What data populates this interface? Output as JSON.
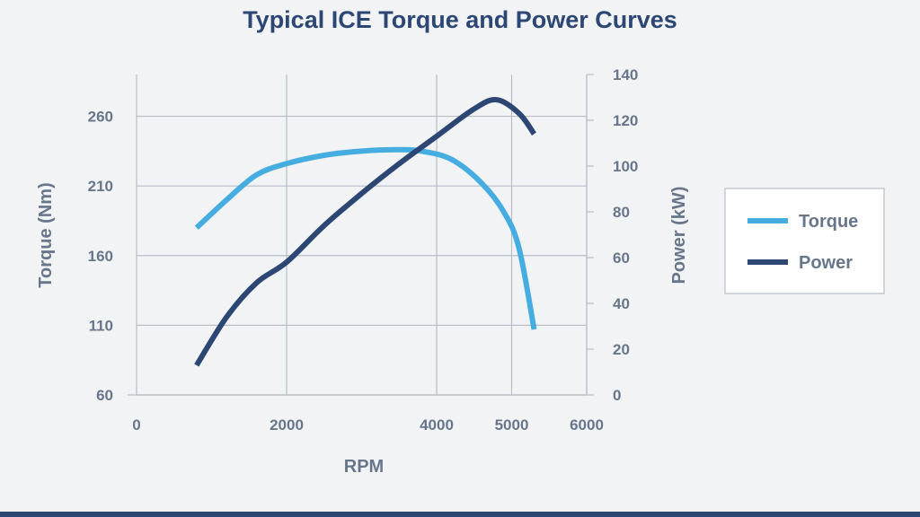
{
  "chart_data": {
    "type": "line",
    "title": "Typical ICE Torque and Power Curves",
    "xlabel": "RPM",
    "ylabel_left": "Torque (Nm)",
    "ylabel_right": "Power (kW)",
    "xlim": [
      0,
      6000
    ],
    "ylim_left": [
      60,
      290
    ],
    "ylim_right": [
      0,
      140
    ],
    "xticks": [
      0,
      2000,
      4000,
      5000,
      6000
    ],
    "yticks_left": [
      60,
      110,
      160,
      210,
      260
    ],
    "yticks_right": [
      0,
      20,
      40,
      60,
      80,
      100,
      120,
      140
    ],
    "grid": true,
    "legend_position": "right",
    "series": [
      {
        "name": "Torque",
        "axis": "left",
        "color": "#45ade0",
        "x": [
          800,
          1200,
          1600,
          2000,
          2500,
          3000,
          3500,
          3800,
          4200,
          4600,
          4900,
          5100,
          5300
        ],
        "y": [
          180,
          200,
          218,
          226,
          232,
          235,
          236,
          235,
          229,
          212,
          191,
          165,
          107
        ]
      },
      {
        "name": "Power",
        "axis": "right",
        "color": "#2d4775",
        "x": [
          800,
          1200,
          1600,
          2000,
          2500,
          3000,
          3500,
          4000,
          4500,
          4800,
          5100,
          5300
        ],
        "y": [
          13,
          34,
          49,
          58,
          74,
          88,
          101,
          113,
          125,
          129,
          123,
          114
        ]
      }
    ]
  }
}
